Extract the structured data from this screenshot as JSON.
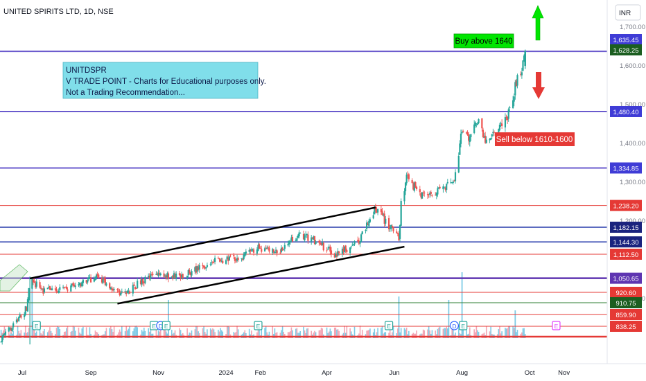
{
  "header": {
    "symbol_title": "UNITED SPIRITS LTD, 1D, NSE"
  },
  "currency_button": "INR",
  "note": {
    "line1": "UNITDSPR",
    "line2": "V TRADE POINT - Charts for Educational purposes only.",
    "line3": "Not a Trading Recommendation..."
  },
  "callouts": {
    "buy": "Buy above 1640",
    "sell": "Sell below 1610-1600"
  },
  "colors": {
    "up": "#26a69a",
    "down": "#ef5350",
    "level_blue": "#6a5acd",
    "level_red": "#e53935",
    "channel": "#000000",
    "buy_box": "#00e600",
    "sell_box": "#e53935",
    "note_box": "#80deea"
  },
  "chart_data": {
    "type": "candlestick",
    "title": "UNITED SPIRITS LTD, 1D, NSE",
    "timeframe": "1D",
    "exchange": "NSE",
    "x_tick_labels": [
      "Jul",
      "Sep",
      "Nov",
      "2024",
      "Feb",
      "Apr",
      "Jun",
      "Aug",
      "Oct",
      "Nov"
    ],
    "y_axis_ticks": [
      "1,700.00",
      "1,600.00",
      "1,500.00",
      "1,400.00",
      "1,300.00",
      "1,200.00",
      "1,000.00"
    ],
    "ylim": [
      812,
      1740
    ],
    "price_path": [
      {
        "date": "2023-06-10",
        "close": 888
      },
      {
        "date": "2023-06-25",
        "close": 935
      },
      {
        "date": "2023-07-05",
        "close": 975
      },
      {
        "date": "2023-07-08",
        "close": 1048
      },
      {
        "date": "2023-07-20",
        "close": 1020
      },
      {
        "date": "2023-08-10",
        "close": 1022
      },
      {
        "date": "2023-08-28",
        "close": 1042
      },
      {
        "date": "2023-09-06",
        "close": 1055
      },
      {
        "date": "2023-09-20",
        "close": 1025
      },
      {
        "date": "2023-10-01",
        "close": 1008
      },
      {
        "date": "2023-10-15",
        "close": 1040
      },
      {
        "date": "2023-10-30",
        "close": 1060
      },
      {
        "date": "2023-11-20",
        "close": 1055
      },
      {
        "date": "2023-12-05",
        "close": 1072
      },
      {
        "date": "2023-12-20",
        "close": 1095
      },
      {
        "date": "2024-01-10",
        "close": 1100
      },
      {
        "date": "2024-01-31",
        "close": 1130
      },
      {
        "date": "2024-02-15",
        "close": 1115
      },
      {
        "date": "2024-03-05",
        "close": 1162
      },
      {
        "date": "2024-03-20",
        "close": 1150
      },
      {
        "date": "2024-04-10",
        "close": 1110
      },
      {
        "date": "2024-04-30",
        "close": 1145
      },
      {
        "date": "2024-05-15",
        "close": 1232
      },
      {
        "date": "2024-06-01",
        "close": 1168
      },
      {
        "date": "2024-06-05",
        "close": 1155
      },
      {
        "date": "2024-06-07",
        "close": 1240
      },
      {
        "date": "2024-06-12",
        "close": 1315
      },
      {
        "date": "2024-06-18",
        "close": 1290
      },
      {
        "date": "2024-06-28",
        "close": 1260
      },
      {
        "date": "2024-07-15",
        "close": 1280
      },
      {
        "date": "2024-07-25",
        "close": 1300
      },
      {
        "date": "2024-08-01",
        "close": 1430
      },
      {
        "date": "2024-08-06",
        "close": 1410
      },
      {
        "date": "2024-08-15",
        "close": 1455
      },
      {
        "date": "2024-08-22",
        "close": 1405
      },
      {
        "date": "2024-09-05",
        "close": 1440
      },
      {
        "date": "2024-09-12",
        "close": 1475
      },
      {
        "date": "2024-09-20",
        "close": 1565
      },
      {
        "date": "2024-09-25",
        "close": 1600
      },
      {
        "date": "2024-09-27",
        "close": 1628
      }
    ],
    "volume_spikes": [
      {
        "date": "2023-07-10",
        "level": 0.75
      },
      {
        "date": "2023-11-10",
        "level": 0.55
      },
      {
        "date": "2024-06-05",
        "level": 0.6
      },
      {
        "date": "2024-07-20",
        "level": 0.55
      },
      {
        "date": "2024-08-01",
        "level": 0.95
      },
      {
        "date": "2024-09-18",
        "level": 0.4
      }
    ],
    "events": [
      {
        "date": "2023-07-14",
        "label": "E"
      },
      {
        "date": "2023-10-28",
        "label": "E"
      },
      {
        "date": "2023-11-03",
        "label": "D"
      },
      {
        "date": "2023-11-08",
        "label": "E"
      },
      {
        "date": "2024-01-30",
        "label": "E"
      },
      {
        "date": "2024-05-27",
        "label": "E"
      },
      {
        "date": "2024-07-25",
        "label": "D"
      },
      {
        "date": "2024-08-02",
        "label": "E"
      },
      {
        "date": "2024-10-25",
        "label": "E"
      }
    ],
    "channel": {
      "upper": [
        {
          "date": "2023-07-08",
          "price": 1050
        },
        {
          "date": "2024-05-15",
          "price": 1233
        }
      ],
      "lower": [
        {
          "date": "2023-09-25",
          "price": 985
        },
        {
          "date": "2024-06-10",
          "price": 1132
        }
      ]
    },
    "levels": [
      {
        "price": 1635.45,
        "label": "1,635.45",
        "tag": "level"
      },
      {
        "price": 1628.25,
        "label": "1,628.25",
        "tag": "last"
      },
      {
        "price": 1480.4,
        "label": "1,480.40",
        "tag": "level"
      },
      {
        "price": 1334.85,
        "label": "1,334.85",
        "tag": "level"
      },
      {
        "price": 1238.2,
        "label": "1,238.20",
        "tag": "red"
      },
      {
        "price": 1182.15,
        "label": "1,182.15",
        "tag": "blue2"
      },
      {
        "price": 1144.3,
        "label": "1,144.30",
        "tag": "blue2"
      },
      {
        "price": 1112.5,
        "label": "1,112.50",
        "tag": "red"
      },
      {
        "price": 1050.65,
        "label": "1,050.65",
        "tag": "purple"
      },
      {
        "price": 920.6,
        "label": "920.60",
        "tag": "red"
      },
      {
        "price": 910.75,
        "label": "910.75",
        "tag": "green"
      },
      {
        "price": 859.9,
        "label": "859.90",
        "tag": "red"
      },
      {
        "price": 838.25,
        "label": "838.25",
        "tag": "red"
      }
    ],
    "grid": false,
    "legend": "none"
  }
}
